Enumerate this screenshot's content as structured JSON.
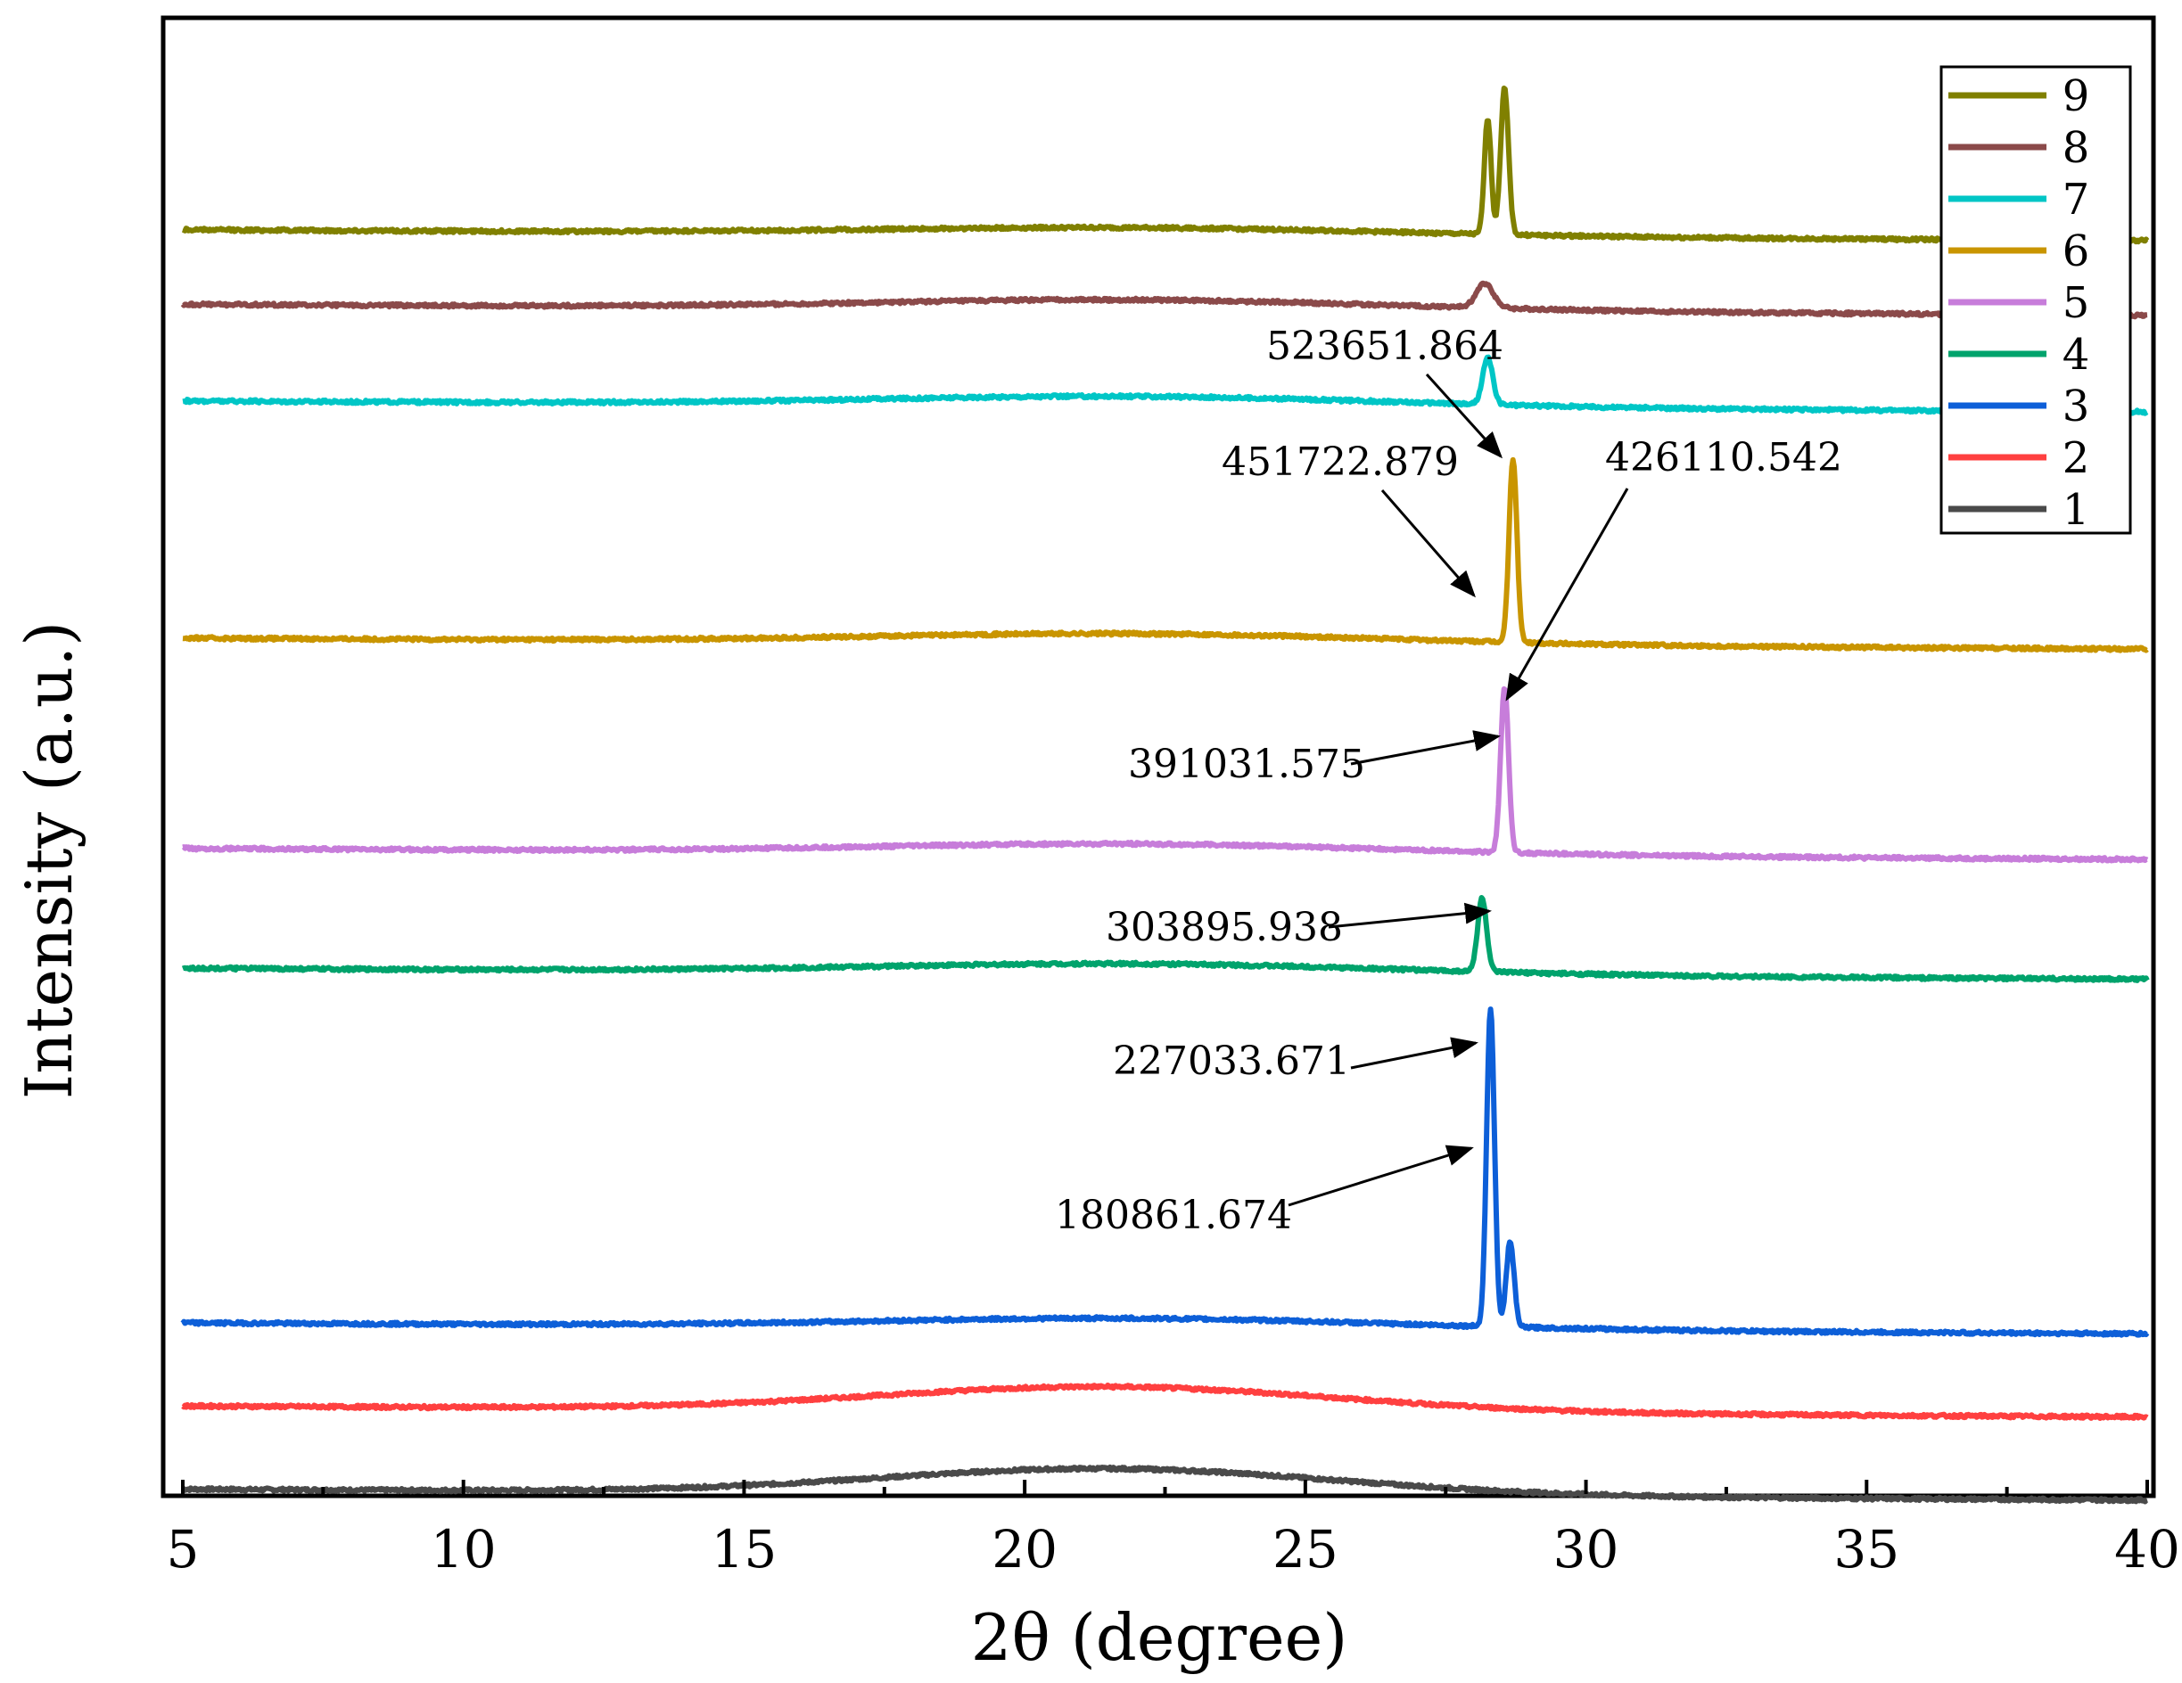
{
  "chart_data": {
    "type": "line",
    "xlabel": "2θ (degree)",
    "ylabel": "Intensity (a.u.)",
    "xlim": [
      5,
      40
    ],
    "xticks": [
      5,
      10,
      15,
      20,
      25,
      30,
      35,
      40
    ],
    "xtick_labels": [
      "5",
      "10",
      "15",
      "20",
      "25",
      "30",
      "35",
      "40"
    ],
    "legend_position": "top-right",
    "grid": false,
    "y_units": "arbitrary, vertically offset stacked patterns",
    "series": [
      {
        "name": "1",
        "color": "#4a4a4a",
        "offset": 0.4,
        "hump": {
          "center": 21.5,
          "height": 2.1,
          "width": 4.0
        },
        "peaks": []
      },
      {
        "name": "2",
        "color": "#ff4040",
        "offset": 7.2,
        "hump": {
          "center": 21.5,
          "height": 2.0,
          "width": 4.0
        },
        "peaks": []
      },
      {
        "name": "3",
        "color": "#0d5fd8",
        "offset": 14.0,
        "hump": {
          "center": 22.0,
          "height": 0.8,
          "width": 4.5
        },
        "peaks": [
          {
            "x": 28.3,
            "h": 26.0,
            "w": 0.07
          },
          {
            "x": 28.65,
            "h": 7.0,
            "w": 0.07
          }
        ]
      },
      {
        "name": "4",
        "color": "#00a36c",
        "offset": 43.0,
        "hump": {
          "center": 22.0,
          "height": 0.8,
          "width": 4.5
        },
        "peaks": [
          {
            "x": 28.15,
            "h": 6.0,
            "w": 0.08
          }
        ]
      },
      {
        "name": "5",
        "color": "#c77dda",
        "offset": 52.8,
        "hump": {
          "center": 22.0,
          "height": 0.8,
          "width": 4.5
        },
        "peaks": [
          {
            "x": 28.55,
            "h": 13.5,
            "w": 0.07
          }
        ]
      },
      {
        "name": "6",
        "color": "#c99500",
        "offset": 70.0,
        "hump": {
          "center": 22.0,
          "height": 0.8,
          "width": 4.5
        },
        "peaks": [
          {
            "x": 28.7,
            "h": 15.0,
            "w": 0.07
          }
        ]
      },
      {
        "name": "7",
        "color": "#00c6c6",
        "offset": 89.4,
        "hump": {
          "center": 22.0,
          "height": 0.8,
          "width": 4.5
        },
        "peaks": [
          {
            "x": 28.25,
            "h": 3.8,
            "w": 0.09
          }
        ]
      },
      {
        "name": "8",
        "color": "#8b4a4a",
        "offset": 97.3,
        "hump": {
          "center": 22.0,
          "height": 0.8,
          "width": 4.5
        },
        "peaks": [
          {
            "x": 28.2,
            "h": 2.0,
            "w": 0.15
          }
        ]
      },
      {
        "name": "9",
        "color": "#808000",
        "offset": 103.4,
        "hump": {
          "center": 22.0,
          "height": 0.6,
          "width": 4.5
        },
        "peaks": [
          {
            "x": 28.25,
            "h": 9.5,
            "w": 0.06
          },
          {
            "x": 28.55,
            "h": 12.0,
            "w": 0.07
          }
        ]
      }
    ],
    "annotations": [
      {
        "text": "523651.864",
        "target": {
          "series": "9",
          "x": 28.55
        }
      },
      {
        "text": "451722.879",
        "target": {
          "series": "8",
          "x": 28.2
        }
      },
      {
        "text": "426110.542",
        "target": {
          "series": "7",
          "x": 28.4
        }
      },
      {
        "text": "391031.575",
        "target": {
          "series": "6",
          "x": 28.7
        }
      },
      {
        "text": "303895.938",
        "target": {
          "series": "5",
          "x": 28.55
        }
      },
      {
        "text": "227033.671",
        "target": {
          "series": "4",
          "x": 28.15
        }
      },
      {
        "text": "180861.674",
        "target": {
          "series": "3",
          "x": 28.3
        }
      }
    ]
  }
}
